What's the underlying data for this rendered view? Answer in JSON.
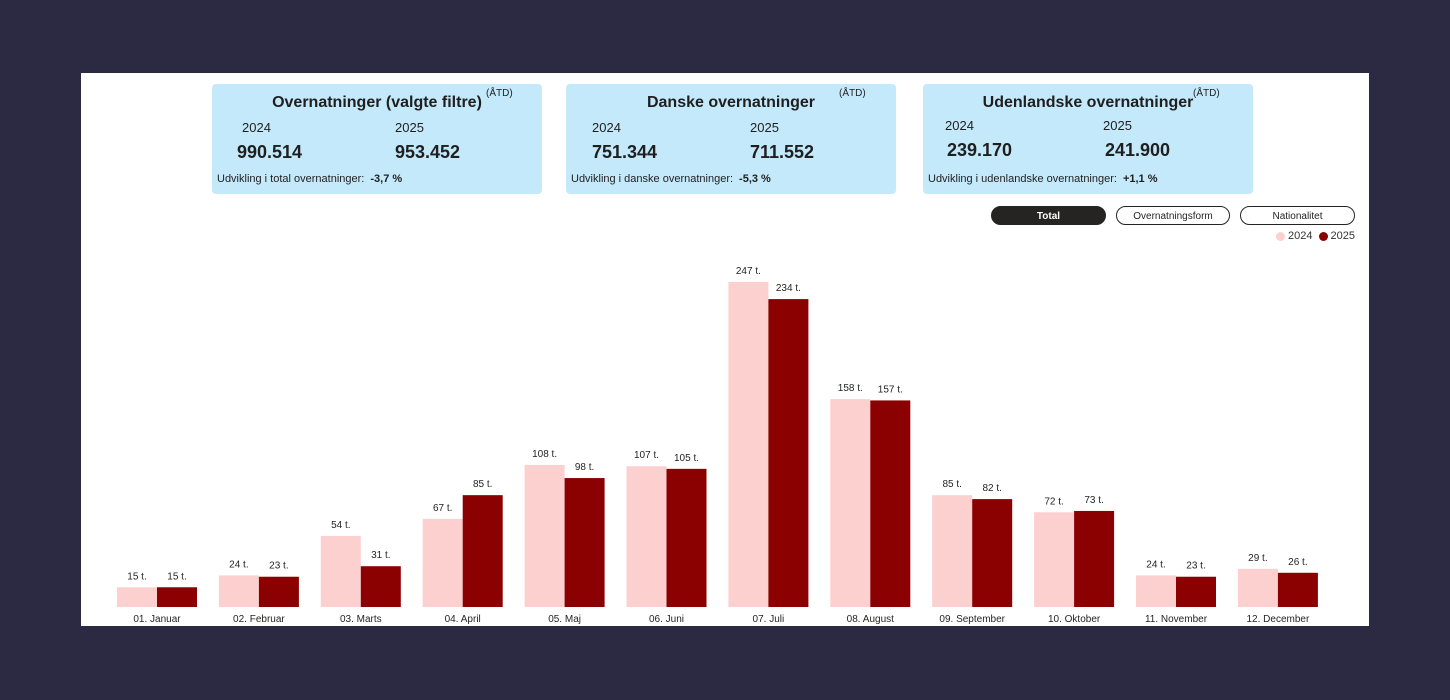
{
  "kpis": [
    {
      "title": "Overnatninger (valgte filtre)",
      "atd": "(ÅTD)",
      "year_a": "2024",
      "value_a": "990.514",
      "year_b": "2025",
      "value_b": "953.452",
      "dev_label": "Udvikling i total overnatninger:",
      "dev_value": "-3,7 %"
    },
    {
      "title": "Danske overnatninger",
      "atd": "(ÅTD)",
      "year_a": "2024",
      "value_a": "751.344",
      "year_b": "2025",
      "value_b": "711.552",
      "dev_label": "Udvikling i danske overnatninger:",
      "dev_value": "-5,3 %"
    },
    {
      "title": "Udenlandske overnatninger",
      "atd": "(ÅTD)",
      "year_a": "2024",
      "value_a": "239.170",
      "year_b": "2025",
      "value_b": "241.900",
      "dev_label": "Udvikling i udenlandske overnatninger:",
      "dev_value": "+1,1 %"
    }
  ],
  "buttons": {
    "total": "Total",
    "form": "Overnatningsform",
    "nat": "Nationalitet"
  },
  "legend": {
    "a": "2024",
    "b": "2025"
  },
  "colors": {
    "a": "#fdd0d0",
    "b": "#8b0000"
  },
  "chart_data": {
    "type": "bar",
    "categories": [
      "01. Januar",
      "02. Februar",
      "03. Marts",
      "04. April",
      "05. Maj",
      "06. Juni",
      "07. Juli",
      "08. August",
      "09. September",
      "10. Oktober",
      "11. November",
      "12. December"
    ],
    "series": [
      {
        "name": "2024",
        "values": [
          15,
          24,
          54,
          67,
          108,
          107,
          247,
          158,
          85,
          72,
          24,
          29
        ],
        "labels": [
          "15 t.",
          "24 t.",
          "54 t.",
          "67 t.",
          "108 t.",
          "107 t.",
          "247 t.",
          "158 t.",
          "85 t.",
          "72 t.",
          "24 t.",
          "29 t."
        ]
      },
      {
        "name": "2025",
        "values": [
          15,
          23,
          31,
          85,
          98,
          105,
          234,
          157,
          82,
          73,
          23,
          26
        ],
        "labels": [
          "15 t.",
          "23 t.",
          "31 t.",
          "85 t.",
          "98 t.",
          "105 t.",
          "234 t.",
          "157 t.",
          "82 t.",
          "73 t.",
          "23 t.",
          "26 t."
        ]
      }
    ],
    "ylim": [
      0,
      247
    ],
    "title": "",
    "xlabel": "",
    "ylabel": ""
  }
}
